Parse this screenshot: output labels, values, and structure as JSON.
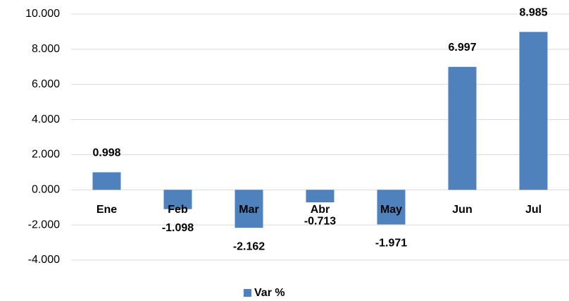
{
  "chart_data": {
    "type": "bar",
    "categories": [
      "Ene",
      "Feb",
      "Mar",
      "Abr",
      "May",
      "Jun",
      "Jul"
    ],
    "series": [
      {
        "name": "Var %",
        "color": "#4f81bd",
        "values": [
          0.998,
          -1.098,
          -2.162,
          -0.713,
          -1.971,
          6.997,
          8.985
        ]
      }
    ],
    "ylim": [
      -4,
      10
    ],
    "yticks": [
      {
        "value": -4,
        "label": "-4.000"
      },
      {
        "value": -2,
        "label": "-2.000"
      },
      {
        "value": 0,
        "label": "0.000"
      },
      {
        "value": 2,
        "label": "2.000"
      },
      {
        "value": 4,
        "label": "4.000"
      },
      {
        "value": 6,
        "label": "6.000"
      },
      {
        "value": 8,
        "label": "8.000"
      },
      {
        "value": 10,
        "label": "10.000"
      }
    ],
    "grid": true,
    "legend": "bottom"
  }
}
